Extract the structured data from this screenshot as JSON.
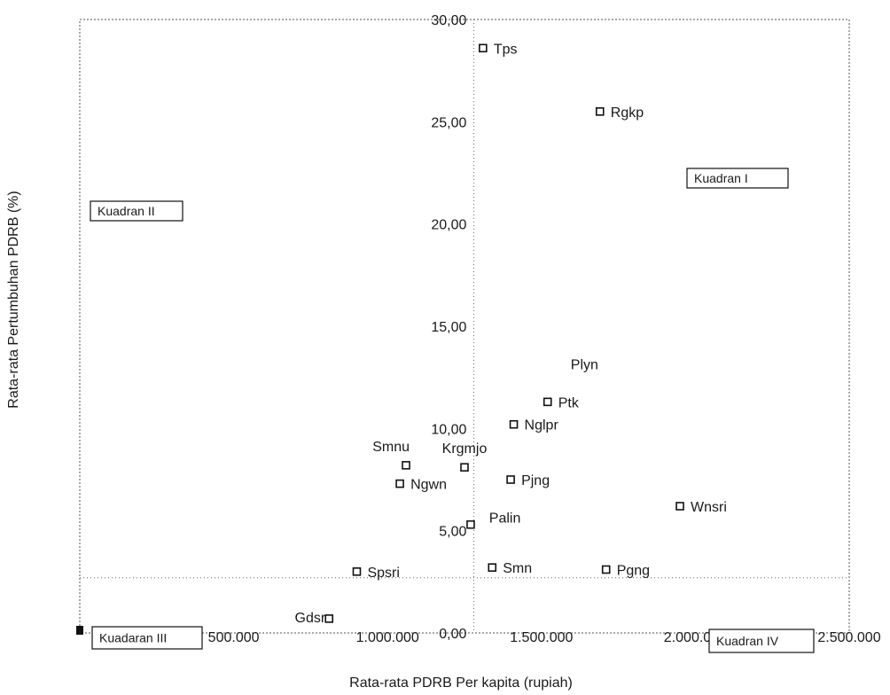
{
  "chart_data": {
    "type": "scatter",
    "xlabel": "Rata-rata PDRB Per kapita (rupiah)",
    "ylabel": "Rata-rata  Pertumbuhan PDRB (%)",
    "xlim": [
      0,
      2500000
    ],
    "ylim": [
      0,
      30
    ],
    "x_ticks": [
      {
        "value": 500000,
        "label": "500.000"
      },
      {
        "value": 1000000,
        "label": "1.000.000"
      },
      {
        "value": 1500000,
        "label": "1.500.000"
      },
      {
        "value": 2000000,
        "label": "2.000.000"
      },
      {
        "value": 2500000,
        "label": "2.500.000"
      }
    ],
    "y_ticks": [
      {
        "value": 0,
        "label": "0,00"
      },
      {
        "value": 5,
        "label": "5,00"
      },
      {
        "value": 10,
        "label": "10,00"
      },
      {
        "value": 15,
        "label": "15,00"
      },
      {
        "value": 20,
        "label": "20,00"
      },
      {
        "value": 25,
        "label": "25,00"
      },
      {
        "value": 30,
        "label": "30,00"
      }
    ],
    "dividers": {
      "x": 1280000,
      "y": 2.7
    },
    "points": [
      {
        "name": "Tps",
        "x": 1310000,
        "y": 28.6
      },
      {
        "name": "Rgkp",
        "x": 1690000,
        "y": 25.5
      },
      {
        "name": "Plyn",
        "x": null,
        "y": null
      },
      {
        "name": "Ptk",
        "x": 1520000,
        "y": 11.3
      },
      {
        "name": "Nglpr",
        "x": 1410000,
        "y": 10.2
      },
      {
        "name": "Smnu",
        "x": 1060000,
        "y": 8.2
      },
      {
        "name": "Krgmjo",
        "x": 1250000,
        "y": 8.1
      },
      {
        "name": "Ngwn",
        "x": 1040000,
        "y": 7.3
      },
      {
        "name": "Pjng",
        "x": 1400000,
        "y": 7.5
      },
      {
        "name": "Wnsri",
        "x": 1950000,
        "y": 6.2
      },
      {
        "name": "Palin",
        "x": 1270000,
        "y": 5.3
      },
      {
        "name": "Spsri",
        "x": 900000,
        "y": 3.0
      },
      {
        "name": "Smn",
        "x": 1340000,
        "y": 3.2
      },
      {
        "name": "Pgng",
        "x": 1710000,
        "y": 3.1
      },
      {
        "name": "Gdsr",
        "x": 810000,
        "y": 0.7
      }
    ],
    "quadrants": [
      {
        "name": "Kuadran I",
        "position": "upper-right"
      },
      {
        "name": "Kuadran II",
        "position": "upper-left"
      },
      {
        "name": "Kuadaran III",
        "position": "lower-left"
      },
      {
        "name": "Kuadran IV",
        "position": "lower-right"
      }
    ]
  }
}
